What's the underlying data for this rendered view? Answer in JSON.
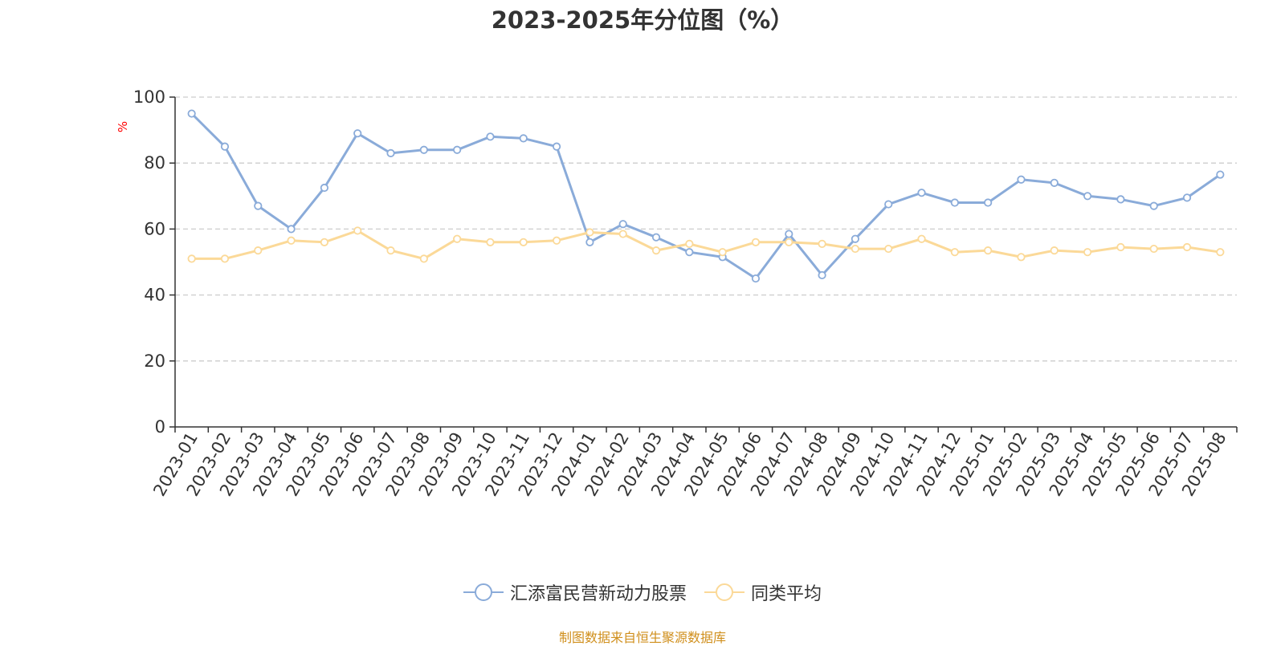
{
  "chart_data": {
    "type": "line",
    "title": "2023-2025年分位图（%）",
    "ylabel": "%",
    "xlabel": "",
    "ylim": [
      0,
      100
    ],
    "yticks": [
      0,
      20,
      40,
      60,
      80,
      100
    ],
    "grid": true,
    "legend_position": "bottom",
    "categories": [
      "2023-01",
      "2023-02",
      "2023-03",
      "2023-04",
      "2023-05",
      "2023-06",
      "2023-07",
      "2023-08",
      "2023-09",
      "2023-10",
      "2023-11",
      "2023-12",
      "2024-01",
      "2024-02",
      "2024-03",
      "2024-04",
      "2024-05",
      "2024-06",
      "2024-07",
      "2024-08",
      "2024-09",
      "2024-10",
      "2024-11",
      "2024-12",
      "2025-01",
      "2025-02",
      "2025-03",
      "2025-04",
      "2025-05",
      "2025-06",
      "2025-07",
      "2025-08"
    ],
    "series": [
      {
        "name": "汇添富民营新动力股票",
        "color": "#8aabd9",
        "values": [
          95,
          85,
          67,
          60,
          72.5,
          89,
          83,
          84,
          84,
          88,
          87.5,
          85,
          56,
          61.5,
          57.5,
          53,
          51.5,
          45,
          58.5,
          46,
          57,
          67.5,
          71,
          68,
          68,
          75,
          74,
          70,
          69,
          67,
          69.5,
          76.5
        ]
      },
      {
        "name": "同类平均",
        "color": "#fbd998",
        "values": [
          51,
          51,
          53.5,
          56.5,
          56,
          59.5,
          53.5,
          51,
          57,
          56,
          56,
          56.5,
          59,
          58.5,
          53.5,
          55.5,
          53,
          56,
          56,
          55.5,
          54,
          54,
          57,
          53,
          53.5,
          51.5,
          53.5,
          53,
          54.5,
          54,
          54.5,
          53
        ]
      }
    ]
  },
  "source_text": "制图数据来自恒生聚源数据库",
  "colors": {
    "title": "#333333",
    "axis": "#333333",
    "grid": "#cccccc",
    "ylabel": "#ff0000",
    "source": "#d08f1c"
  }
}
